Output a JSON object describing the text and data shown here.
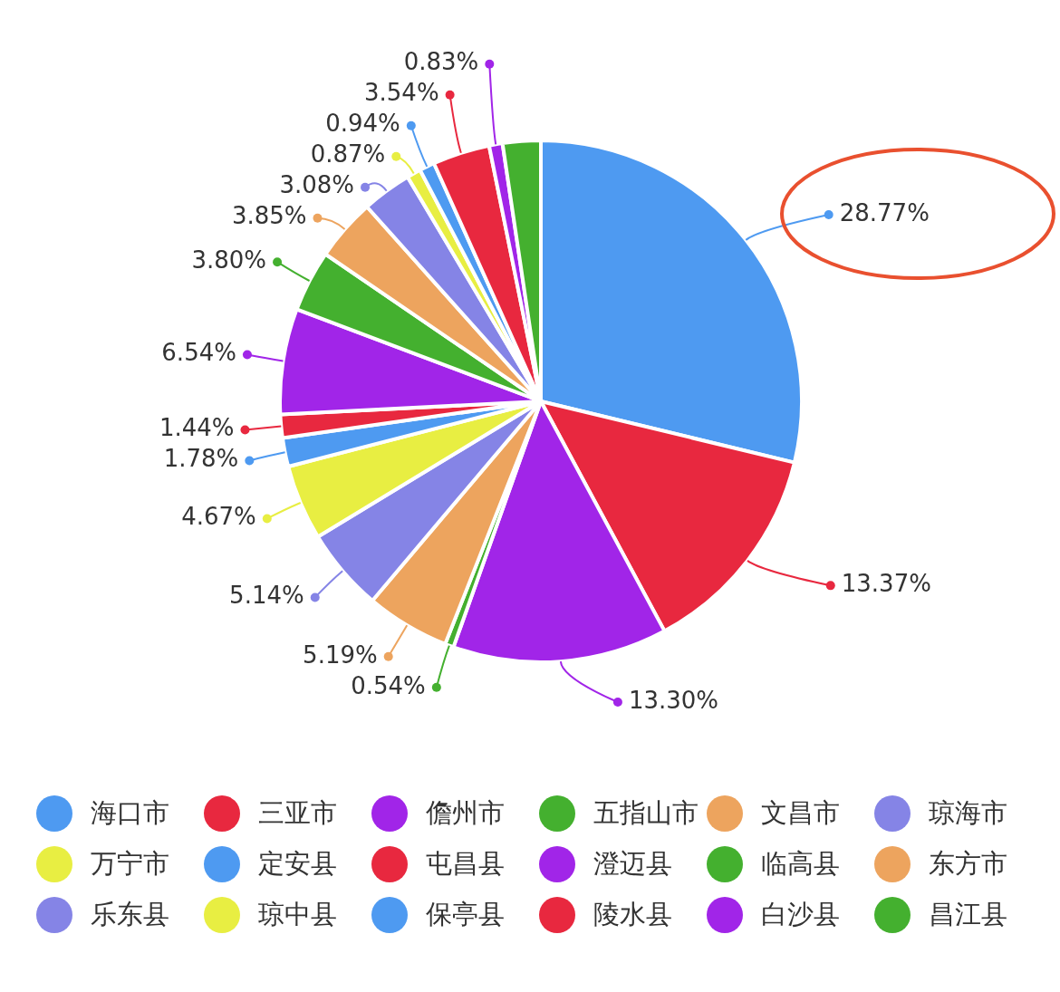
{
  "chart_data": {
    "type": "pie",
    "categories": [
      "海口市",
      "三亚市",
      "儋州市",
      "五指山市",
      "文昌市",
      "琼海市",
      "万宁市",
      "定安县",
      "屯昌县",
      "澄迈县",
      "临高县",
      "东方市",
      "乐东县",
      "琼中县",
      "保亭县",
      "陵水县",
      "白沙县",
      "昌江县"
    ],
    "values": [
      28.77,
      13.37,
      13.3,
      0.54,
      5.19,
      5.14,
      4.67,
      1.78,
      1.44,
      6.54,
      3.8,
      3.85,
      3.08,
      0.87,
      0.94,
      3.54,
      0.83,
      2.35
    ],
    "colors": [
      "#4e9af1",
      "#e8283f",
      "#a125e8",
      "#44b02f",
      "#eda45e",
      "#8584e6",
      "#e8ee42",
      "#4e9af1",
      "#e8283f",
      "#a125e8",
      "#44b02f",
      "#eda45e",
      "#8584e6",
      "#e8ee42",
      "#4e9af1",
      "#e8283f",
      "#a125e8",
      "#44b02f"
    ],
    "value_labels": [
      "28.77%",
      "13.37%",
      "13.30%",
      "0.54%",
      "5.19%",
      "5.14%",
      "4.67%",
      "1.78%",
      "1.44%",
      "6.54%",
      "3.80%",
      "3.85%",
      "3.08%",
      "0.87%",
      "0.94%",
      "3.54%",
      "0.83%",
      null
    ],
    "legend": "bottom"
  }
}
